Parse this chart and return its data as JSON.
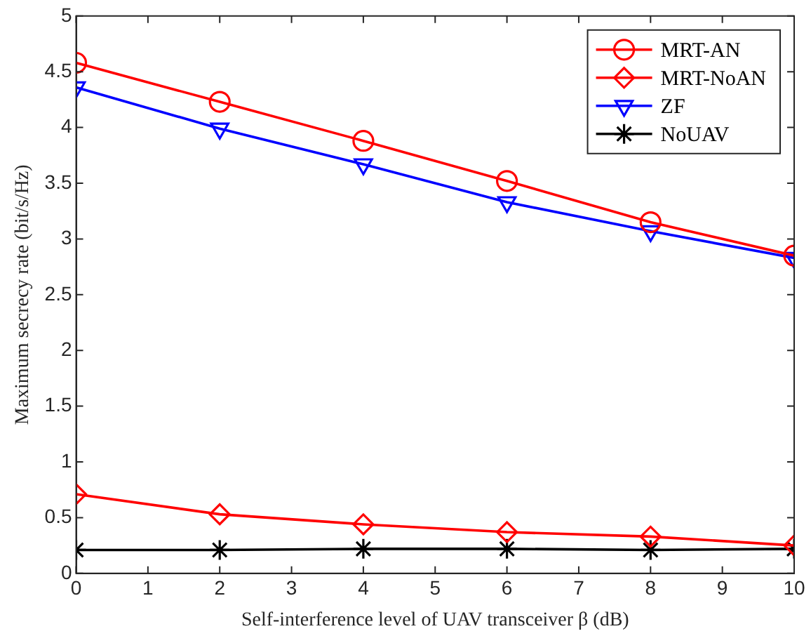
{
  "chart_data": {
    "type": "line",
    "xlabel": "Self-interference level of UAV transceiver β (dB)",
    "ylabel": "Maximum secrecy rate (bit/s/Hz)",
    "x": [
      0,
      2,
      4,
      6,
      8,
      10
    ],
    "xlim": [
      0,
      10
    ],
    "xticks": [
      0,
      1,
      2,
      3,
      4,
      5,
      6,
      7,
      8,
      9,
      10
    ],
    "ylim": [
      0,
      5
    ],
    "yticks": [
      0,
      0.5,
      1,
      1.5,
      2,
      2.5,
      3,
      3.5,
      4,
      4.5,
      5
    ],
    "grid": false,
    "legend": "top right",
    "line_style": "solid",
    "series": [
      {
        "name": "MRT-AN",
        "color": "#ff0000",
        "marker": "circle",
        "values": [
          4.58,
          4.23,
          3.88,
          3.52,
          3.15,
          2.85
        ]
      },
      {
        "name": "MRT-NoAN",
        "color": "#ff0000",
        "marker": "diamond",
        "values": [
          0.71,
          0.53,
          0.44,
          0.37,
          0.33,
          0.25
        ]
      },
      {
        "name": "ZF",
        "color": "#0000ff",
        "marker": "triangle",
        "values": [
          4.36,
          3.99,
          3.67,
          3.33,
          3.07,
          2.83
        ]
      },
      {
        "name": "NoUAV",
        "color": "#000000",
        "marker": "cross",
        "values": [
          0.21,
          0.21,
          0.22,
          0.22,
          0.21,
          0.22
        ]
      }
    ]
  }
}
